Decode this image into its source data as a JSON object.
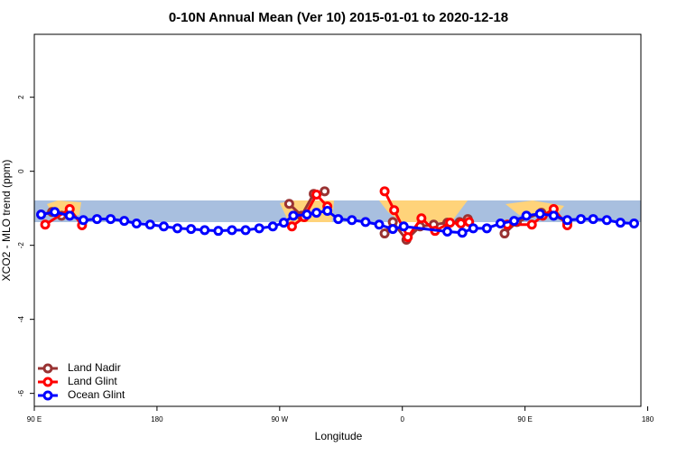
{
  "chart_data": {
    "type": "line",
    "title": "0-10N Annual Mean (Ver 10)   2015-01-01 to 2020-12-18",
    "xlabel": "Longitude",
    "ylabel": "XCO2 - MLO trend (ppm)",
    "xlim": [
      90,
      535
    ],
    "ylim": [
      -6.35,
      3.7
    ],
    "xticks": [
      {
        "value": 90,
        "label": "90 E"
      },
      180,
      {
        "value": 270,
        "label": "90 W"
      },
      {
        "value": 360,
        "label": "0"
      },
      {
        "value": 450,
        "label": "90 E"
      },
      {
        "value": 540,
        "label": "180"
      }
    ],
    "yticks": [
      2,
      0,
      -2,
      -4,
      -6
    ],
    "legend": "bottom-left",
    "series": [
      {
        "name": "Land Nadir",
        "color": "#993333",
        "x": [
          95,
          103,
          110,
          null,
          277,
          286,
          295,
          303,
          null,
          347,
          353,
          363,
          373,
          383,
          393,
          402,
          408,
          null,
          435,
          444,
          462,
          471,
          481
        ],
        "values": [
          -1.17,
          -1.1,
          -1.2,
          null,
          -0.88,
          -1.2,
          -0.61,
          -0.54,
          null,
          -1.68,
          -1.37,
          -1.85,
          -1.49,
          -1.44,
          -1.39,
          -1.37,
          -1.29,
          null,
          -1.68,
          -1.37,
          -1.12,
          -1.17,
          -1.39
        ]
      },
      {
        "name": "Land Glint",
        "color": "#ff0000",
        "x": [
          98,
          116,
          125,
          null,
          279,
          288,
          297,
          305,
          null,
          347,
          354,
          364,
          374,
          384,
          395,
          403,
          409,
          null,
          437,
          455,
          463,
          471,
          481
        ],
        "values": [
          -1.44,
          -1.02,
          -1.46,
          null,
          -1.49,
          -1.24,
          -0.63,
          -0.95,
          null,
          -0.54,
          -1.05,
          -1.78,
          -1.27,
          -1.61,
          -1.39,
          -1.41,
          -1.37,
          null,
          -1.44,
          -1.44,
          -1.2,
          -1.02,
          -1.46
        ]
      },
      {
        "name": "Ocean Glint",
        "color": "#0000ff",
        "x": [
          95,
          105,
          116,
          126,
          136,
          146,
          156,
          165,
          175,
          185,
          195,
          205,
          215,
          225,
          235,
          245,
          255,
          265,
          273,
          280,
          290,
          297,
          305,
          313,
          323,
          333,
          343,
          353,
          361,
          393,
          404,
          412,
          422,
          432,
          442,
          451,
          461,
          471,
          481,
          491,
          500,
          510,
          520,
          530
        ],
        "values": [
          -1.17,
          -1.1,
          -1.2,
          -1.32,
          -1.29,
          -1.29,
          -1.34,
          -1.41,
          -1.44,
          -1.49,
          -1.54,
          -1.56,
          -1.59,
          -1.61,
          -1.59,
          -1.59,
          -1.54,
          -1.49,
          -1.39,
          -1.2,
          -1.17,
          -1.12,
          -1.07,
          -1.29,
          -1.32,
          -1.37,
          -1.44,
          -1.56,
          -1.49,
          -1.63,
          -1.66,
          -1.54,
          -1.54,
          -1.41,
          -1.34,
          -1.2,
          -1.15,
          -1.2,
          -1.32,
          -1.29,
          -1.29,
          -1.32,
          -1.39,
          -1.41
        ]
      }
    ]
  }
}
